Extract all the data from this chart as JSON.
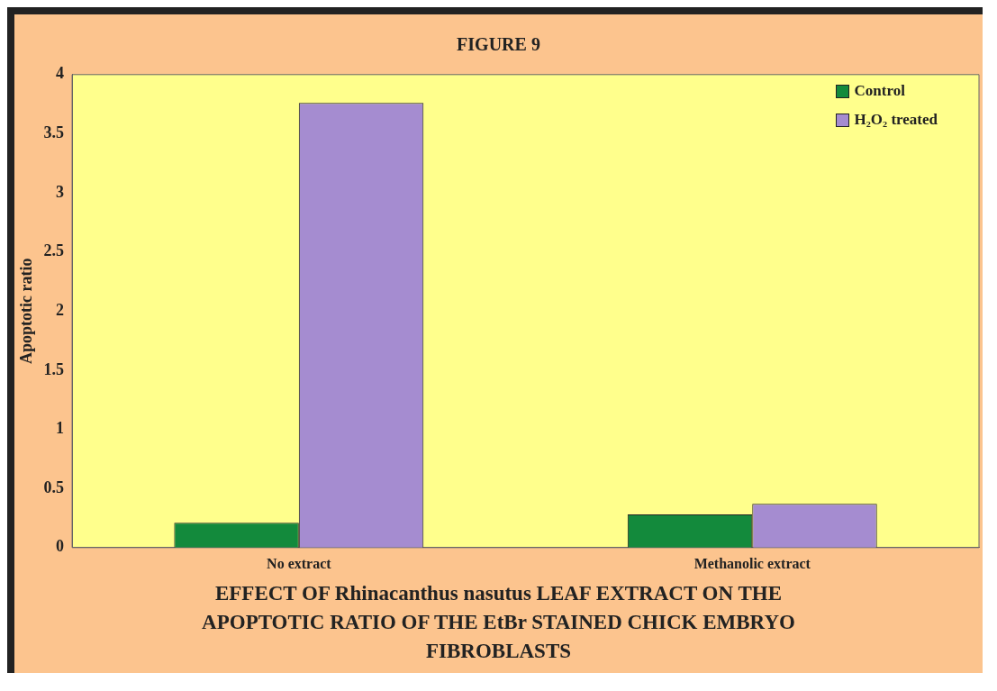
{
  "chart_data": {
    "type": "bar",
    "title": "FIGURE 9",
    "categories": [
      "No extract",
      "Methanolic extract"
    ],
    "series": [
      {
        "name": "Control",
        "color": "#138a3c",
        "values": [
          0.21,
          0.28
        ]
      },
      {
        "name": "H₂O₂ treated",
        "color": "#a58cd0",
        "values": [
          3.76,
          0.37
        ]
      }
    ],
    "ylabel": "Apoptotic ratio",
    "ylim": [
      0,
      4
    ],
    "yticks": [
      0,
      0.5,
      1,
      1.5,
      2,
      2.5,
      3,
      3.5,
      4
    ],
    "legend": "top right",
    "annotations": [
      "EFFECT OF Rhinacanthus nasutus LEAF EXTRACT ON THE APOPTOTIC RATIO OF THE EtBr STAINED CHICK EMBRYO FIBROBLASTS"
    ]
  }
}
